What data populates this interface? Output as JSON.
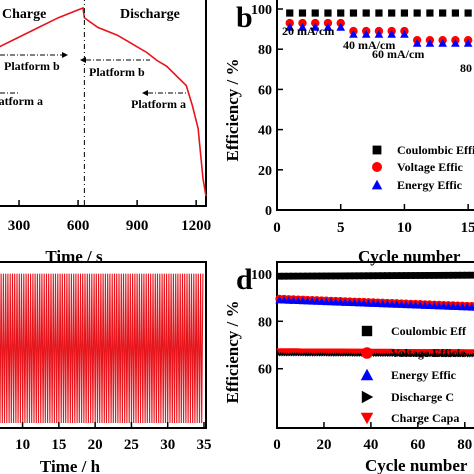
{
  "chart_data": [
    {
      "panel": "a",
      "type": "line",
      "xlabel": "Time / s",
      "xticks": [
        300,
        600,
        900,
        1200
      ],
      "xlim": [
        0,
        1250
      ],
      "ylim": [
        0,
        1
      ],
      "annotations": {
        "charge": "Charge",
        "discharge": "Discharge",
        "platform_b_charge": "Platform b",
        "platform_a_charge": "Platform a",
        "platform_b_discharge": "Platform b",
        "platform_a_discharge": "Platform a"
      },
      "series": [
        {
          "color": "#e8141b",
          "x": [
            0,
            100,
            200,
            300,
            400,
            500,
            600,
            625,
            632,
            645,
            700,
            800,
            900,
            950,
            1000,
            1050,
            1100,
            1150,
            1180,
            1210,
            1235,
            1250
          ],
          "y": [
            0.72,
            0.77,
            0.8,
            0.85,
            0.9,
            0.95,
            0.99,
            1.0,
            0.95,
            0.94,
            0.9,
            0.86,
            0.8,
            0.77,
            0.73,
            0.7,
            0.65,
            0.6,
            0.5,
            0.38,
            0.12,
            0.03
          ]
        }
      ]
    },
    {
      "panel": "b",
      "type": "scatter",
      "panel_label": "b",
      "ylabel": "Efficiency / %",
      "xlabel": "Cycle number",
      "xticks": [
        0,
        5,
        10,
        15
      ],
      "yticks": [
        0,
        20,
        40,
        60,
        80,
        100
      ],
      "xlim": [
        0,
        17.5
      ],
      "ylim": [
        0,
        102
      ],
      "rate_labels": [
        "20 mA/cm",
        "40 mA/cm",
        "60 mA/cm",
        "80"
      ],
      "legend": [
        "Coulombic Effi",
        "Voltage Effic",
        "Energy Effic"
      ],
      "series": [
        {
          "marker": "square",
          "color": "#000000",
          "x": [
            1,
            2,
            3,
            4,
            5,
            6,
            7,
            8,
            9,
            10,
            11,
            12,
            13,
            14,
            15,
            16,
            17
          ],
          "values": [
            98,
            98,
            98,
            98,
            98,
            98,
            98,
            98,
            98,
            98,
            98,
            98,
            98,
            98,
            98,
            98,
            98
          ]
        },
        {
          "marker": "circle",
          "color": "#ff0000",
          "x": [
            1,
            2,
            3,
            4,
            5,
            6,
            7,
            8,
            9,
            10,
            11,
            12,
            13,
            14,
            15,
            16,
            17
          ],
          "values": [
            93,
            93,
            93,
            93,
            93,
            89,
            89,
            89,
            89,
            89,
            84.5,
            84.5,
            84.5,
            84.5,
            84.5,
            80,
            80
          ]
        },
        {
          "marker": "triangle",
          "color": "#0000ff",
          "x": [
            1,
            2,
            3,
            4,
            5,
            6,
            7,
            8,
            9,
            10,
            11,
            12,
            13,
            14,
            15,
            16,
            17
          ],
          "values": [
            91,
            91,
            91,
            91,
            91,
            87.5,
            87.5,
            87.5,
            87.5,
            87.5,
            83,
            83,
            83,
            83,
            83,
            79,
            79
          ]
        }
      ]
    },
    {
      "panel": "c",
      "type": "line",
      "xlabel": "Time / h",
      "xticks": [
        10,
        15,
        20,
        25,
        30,
        35
      ],
      "xlim": [
        0,
        35
      ],
      "cycles": 90,
      "color": "#e8141b",
      "y_top": 0.93,
      "y_bottom": 0.03
    },
    {
      "panel": "d",
      "type": "scatter",
      "panel_label": "d",
      "ylabel": "Efficiency / %",
      "xlabel": "Cycle number",
      "xticks": [
        0,
        20,
        40,
        60,
        80
      ],
      "yticks": [
        60,
        80,
        100
      ],
      "xlim": [
        0,
        95
      ],
      "ylim": [
        35,
        105
      ],
      "legend": [
        "Coulombic Eff",
        "Voltage Efficie",
        "Energy Effic",
        "Discharge C",
        "Charge Capa"
      ],
      "series": [
        {
          "marker": "square",
          "color": "#000000",
          "from": 1,
          "to": 95,
          "step": 2,
          "start": 99,
          "end": 99.5
        },
        {
          "marker": "circle",
          "color": "#ff0000",
          "from": 1,
          "to": 95,
          "step": 2,
          "start": 89.5,
          "end": 86
        },
        {
          "marker": "triangle",
          "color": "#0000ff",
          "from": 1,
          "to": 95,
          "step": 2,
          "start": 89,
          "end": 85.5
        },
        {
          "marker": "triangle-right",
          "color": "#000000",
          "from": 1,
          "to": 95,
          "step": 1,
          "start": 66.5,
          "end": 66
        },
        {
          "marker": "triangle-down",
          "color": "#ff0000",
          "from": 1,
          "to": 95,
          "step": 1,
          "start": 67.5,
          "end": 67
        }
      ]
    }
  ]
}
